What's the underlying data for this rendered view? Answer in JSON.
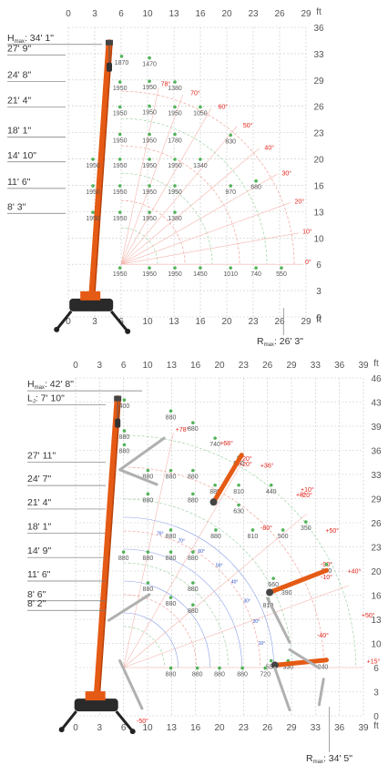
{
  "chart_data": [
    {
      "type": "scatter",
      "title": "",
      "xlabel": "ft",
      "ylabel": "ft",
      "x_ticks": [
        "0",
        "3",
        "6",
        "10",
        "13",
        "16",
        "20",
        "23",
        "26",
        "29"
      ],
      "y_ticks": [
        "0",
        "3",
        "6",
        "10",
        "13",
        "16",
        "20",
        "23",
        "26",
        "29",
        "33",
        "36"
      ],
      "xlim": [
        0,
        29
      ],
      "ylim": [
        0,
        36
      ],
      "height_labels": [
        {
          "text": "H",
          "sub": "max",
          "value": ": 34' 1\"",
          "y": 34.1
        },
        {
          "text": "27' 9\"",
          "y": 32.8
        },
        {
          "text": "24' 8\"",
          "y": 29.5
        },
        {
          "text": "21' 4\"",
          "y": 26.3
        },
        {
          "text": "18' 1\"",
          "y": 22.6
        },
        {
          "text": "14' 10\"",
          "y": 19.5
        },
        {
          "text": "11' 6\"",
          "y": 16.2
        },
        {
          "text": "8' 3\"",
          "y": 13.1
        }
      ],
      "reach_label": {
        "text": "R",
        "sub": "max",
        "value": ": 26' 3\""
      },
      "boom_angles": [
        "78°",
        "70°",
        "60°",
        "50°",
        "40°",
        "30°",
        "20°",
        "10°",
        "0°"
      ],
      "load_points": [
        {
          "x": 6.5,
          "y": 32.4,
          "v": "1870"
        },
        {
          "x": 9.9,
          "y": 32.2,
          "v": "1470"
        },
        {
          "x": 6.3,
          "y": 29.2,
          "v": "1950"
        },
        {
          "x": 9.9,
          "y": 29.3,
          "v": "1950"
        },
        {
          "x": 13.0,
          "y": 29.2,
          "v": "1380"
        },
        {
          "x": 6.3,
          "y": 26.1,
          "v": "1950"
        },
        {
          "x": 9.9,
          "y": 26.2,
          "v": "1950"
        },
        {
          "x": 13.0,
          "y": 26.1,
          "v": "1950"
        },
        {
          "x": 16.1,
          "y": 26.1,
          "v": "1050"
        },
        {
          "x": 6.3,
          "y": 22.7,
          "v": "1950"
        },
        {
          "x": 9.9,
          "y": 22.7,
          "v": "1950"
        },
        {
          "x": 13.0,
          "y": 22.7,
          "v": "1780"
        },
        {
          "x": 19.8,
          "y": 22.6,
          "v": "830"
        },
        {
          "x": 3.0,
          "y": 19.6,
          "v": "1950"
        },
        {
          "x": 6.3,
          "y": 19.6,
          "v": "1950"
        },
        {
          "x": 9.9,
          "y": 19.6,
          "v": "1950"
        },
        {
          "x": 13.0,
          "y": 19.6,
          "v": "1950"
        },
        {
          "x": 16.1,
          "y": 19.6,
          "v": "1340"
        },
        {
          "x": 3.0,
          "y": 16.3,
          "v": "1950"
        },
        {
          "x": 6.3,
          "y": 16.3,
          "v": "1950"
        },
        {
          "x": 9.9,
          "y": 16.3,
          "v": "1950"
        },
        {
          "x": 13.0,
          "y": 16.3,
          "v": "1950"
        },
        {
          "x": 19.8,
          "y": 16.3,
          "v": "970"
        },
        {
          "x": 22.9,
          "y": 16.9,
          "v": "680"
        },
        {
          "x": 3.0,
          "y": 13.0,
          "v": "1950"
        },
        {
          "x": 6.3,
          "y": 13.0,
          "v": "1950"
        },
        {
          "x": 9.9,
          "y": 13.0,
          "v": "1950"
        },
        {
          "x": 13.0,
          "y": 13.0,
          "v": "1380"
        },
        {
          "x": 6.3,
          "y": 6.1,
          "v": "1950"
        },
        {
          "x": 9.9,
          "y": 6.1,
          "v": "1950"
        },
        {
          "x": 13.0,
          "y": 6.1,
          "v": "1950"
        },
        {
          "x": 16.1,
          "y": 6.1,
          "v": "1450"
        },
        {
          "x": 19.8,
          "y": 6.1,
          "v": "1010"
        },
        {
          "x": 22.9,
          "y": 6.1,
          "v": "740"
        },
        {
          "x": 26.0,
          "y": 6.1,
          "v": "550"
        }
      ]
    },
    {
      "type": "scatter",
      "title": "",
      "xlabel": "ft",
      "ylabel": "ft",
      "x_ticks": [
        "0",
        "3",
        "6",
        "10",
        "13",
        "16",
        "20",
        "23",
        "26",
        "29",
        "33",
        "36",
        "39"
      ],
      "y_ticks": [
        "0",
        "3",
        "6",
        "10",
        "13",
        "16",
        "20",
        "23",
        "26",
        "29",
        "33",
        "36",
        "39",
        "43",
        "46"
      ],
      "xlim": [
        0,
        39
      ],
      "ylim": [
        0,
        46
      ],
      "height_labels": [
        {
          "text": "H",
          "sub": "max",
          "value": ": 42' 8\"",
          "y": 44.5
        },
        {
          "text": "L",
          "sub": "J",
          "value": ": 7' 10\"",
          "y": 42.6
        },
        {
          "text": "27' 11\"",
          "y": 34.8
        },
        {
          "text": "24' 7\"",
          "y": 31.6
        },
        {
          "text": "21' 4\"",
          "y": 28.4
        },
        {
          "text": "18' 1\"",
          "y": 25.1
        },
        {
          "text": "14' 9\"",
          "y": 21.8
        },
        {
          "text": "11' 6\"",
          "y": 18.6
        },
        {
          "text": "8' 6\"",
          "y": 15.9
        },
        {
          "text": "8' 2\"",
          "y": 14.6
        }
      ],
      "reach_label": {
        "text": "R",
        "sub": "max",
        "value": ": 34' 5\""
      },
      "boom_angles": [
        "+78°",
        "+68°",
        "+36°",
        "+8°",
        "+50°",
        "+40°",
        "+50°",
        "+15°",
        "+20°",
        "+20°",
        "+10°",
        "-20°",
        "-80°",
        "-90°",
        "-10°",
        "-40°",
        "-50°"
      ],
      "jib_angles": [
        "76°",
        "70°",
        "60°",
        "50°",
        "40°",
        "30°",
        "20°",
        "10°"
      ],
      "load_points": [
        {
          "x": 6.6,
          "y": 43.0,
          "v": "400"
        },
        {
          "x": 12.9,
          "y": 41.5,
          "v": "880"
        },
        {
          "x": 15.9,
          "y": 39.9,
          "v": "880"
        },
        {
          "x": 6.6,
          "y": 38.8,
          "v": "880"
        },
        {
          "x": 18.9,
          "y": 37.8,
          "v": "740"
        },
        {
          "x": 6.6,
          "y": 36.9,
          "v": "880"
        },
        {
          "x": 22.1,
          "y": 35.2,
          "v": "570"
        },
        {
          "x": 9.8,
          "y": 33.4,
          "v": "880"
        },
        {
          "x": 12.9,
          "y": 33.4,
          "v": "880"
        },
        {
          "x": 15.9,
          "y": 33.4,
          "v": "880"
        },
        {
          "x": 18.9,
          "y": 31.4,
          "v": "880"
        },
        {
          "x": 22.1,
          "y": 31.4,
          "v": "810"
        },
        {
          "x": 26.5,
          "y": 31.4,
          "v": "440"
        },
        {
          "x": 9.8,
          "y": 30.2,
          "v": "880"
        },
        {
          "x": 15.9,
          "y": 30.2,
          "v": "880"
        },
        {
          "x": 22.1,
          "y": 28.7,
          "v": "630"
        },
        {
          "x": 31.2,
          "y": 26.4,
          "v": "350"
        },
        {
          "x": 12.9,
          "y": 25.3,
          "v": "880"
        },
        {
          "x": 19.0,
          "y": 25.3,
          "v": "880"
        },
        {
          "x": 24.0,
          "y": 25.3,
          "v": "810"
        },
        {
          "x": 28.1,
          "y": 25.3,
          "v": "500"
        },
        {
          "x": 6.5,
          "y": 22.3,
          "v": "880"
        },
        {
          "x": 9.8,
          "y": 22.3,
          "v": "880"
        },
        {
          "x": 12.9,
          "y": 22.3,
          "v": "880"
        },
        {
          "x": 15.9,
          "y": 22.3,
          "v": "880"
        },
        {
          "x": 34.0,
          "y": 20.6,
          "v": "260"
        },
        {
          "x": 26.8,
          "y": 18.7,
          "v": "660"
        },
        {
          "x": 9.8,
          "y": 18.1,
          "v": "880"
        },
        {
          "x": 15.9,
          "y": 18.1,
          "v": "880"
        },
        {
          "x": 28.6,
          "y": 17.6,
          "v": "390"
        },
        {
          "x": 12.9,
          "y": 16.1,
          "v": "880"
        },
        {
          "x": 15.9,
          "y": 15.1,
          "v": "880"
        },
        {
          "x": 26.1,
          "y": 15.9,
          "v": "810"
        },
        {
          "x": 26.5,
          "y": 7.5,
          "v": "550"
        },
        {
          "x": 28.8,
          "y": 7.5,
          "v": "330"
        },
        {
          "x": 33.5,
          "y": 7.5,
          "v": "240"
        },
        {
          "x": 12.9,
          "y": 6.5,
          "v": "880"
        },
        {
          "x": 16.5,
          "y": 6.5,
          "v": "880"
        },
        {
          "x": 19.5,
          "y": 6.5,
          "v": "880"
        },
        {
          "x": 22.6,
          "y": 6.5,
          "v": "880"
        },
        {
          "x": 25.7,
          "y": 6.5,
          "v": "720"
        }
      ]
    }
  ]
}
